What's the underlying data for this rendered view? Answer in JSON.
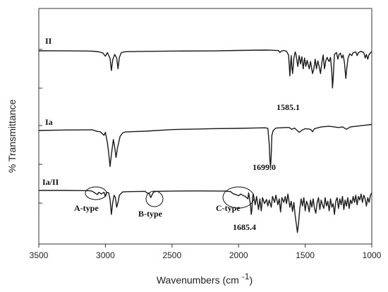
{
  "chart_data": {
    "type": "line",
    "title": "",
    "xlabel": "Wavenumbers (cm",
    "xlabel_sup": "-1",
    "xlabel_close": ")",
    "ylabel": "% Transmittance",
    "xlim": [
      3500,
      1000
    ],
    "x_reversed": true,
    "x_ticks": [
      3500,
      3000,
      2500,
      2000,
      1500,
      1000
    ],
    "grid": false,
    "series": [
      {
        "name": "II",
        "baseline": 0,
        "points": [
          [
            3500,
            0
          ],
          [
            3300,
            -0.1
          ],
          [
            3100,
            -0.6
          ],
          [
            3050,
            -1.8
          ],
          [
            3020,
            -3.4
          ],
          [
            3000,
            -9
          ],
          [
            2985,
            -3
          ],
          [
            2965,
            -13
          ],
          [
            2955,
            -33
          ],
          [
            2945,
            -15
          ],
          [
            2930,
            -6
          ],
          [
            2915,
            -12
          ],
          [
            2905,
            -30
          ],
          [
            2895,
            -11
          ],
          [
            2880,
            -3
          ],
          [
            2850,
            -1.5
          ],
          [
            2700,
            -0.9
          ],
          [
            2500,
            -0.5
          ],
          [
            2200,
            -0.2
          ],
          [
            2000,
            0.6
          ],
          [
            1800,
            1.2
          ],
          [
            1750,
            1.0
          ],
          [
            1700,
            0.4
          ],
          [
            1690,
            -3
          ],
          [
            1680,
            -0.6
          ],
          [
            1660,
            0.6
          ],
          [
            1640,
            -1
          ],
          [
            1625,
            -7
          ],
          [
            1620,
            -22
          ],
          [
            1615,
            -42
          ],
          [
            1610,
            -25
          ],
          [
            1605,
            -8
          ],
          [
            1600,
            -26
          ],
          [
            1595,
            -38
          ],
          [
            1590,
            -27
          ],
          [
            1585,
            -12
          ],
          [
            1575,
            -2
          ],
          [
            1570,
            -5
          ],
          [
            1555,
            -26
          ],
          [
            1545,
            -8
          ],
          [
            1535,
            -22
          ],
          [
            1525,
            -10
          ],
          [
            1515,
            -30
          ],
          [
            1505,
            -12
          ],
          [
            1495,
            -26
          ],
          [
            1485,
            -16
          ],
          [
            1470,
            -30
          ],
          [
            1460,
            -18
          ],
          [
            1445,
            -38
          ],
          [
            1435,
            -30
          ],
          [
            1425,
            -14
          ],
          [
            1415,
            -30
          ],
          [
            1405,
            -17
          ],
          [
            1395,
            -26
          ],
          [
            1385,
            -38
          ],
          [
            1375,
            -20
          ],
          [
            1365,
            -7
          ],
          [
            1355,
            -30
          ],
          [
            1345,
            -16
          ],
          [
            1335,
            -11
          ],
          [
            1330,
            -14
          ],
          [
            1320,
            -18
          ],
          [
            1310,
            -11
          ],
          [
            1300,
            -36
          ],
          [
            1295,
            -62
          ],
          [
            1290,
            -48
          ],
          [
            1285,
            -25
          ],
          [
            1280,
            -6
          ],
          [
            1265,
            -3
          ],
          [
            1255,
            -14
          ],
          [
            1245,
            -6
          ],
          [
            1235,
            -4
          ],
          [
            1225,
            -12
          ],
          [
            1215,
            -7
          ],
          [
            1205,
            -20
          ],
          [
            1195,
            -46
          ],
          [
            1188,
            -30
          ],
          [
            1178,
            -12
          ],
          [
            1165,
            -5
          ],
          [
            1150,
            -8
          ],
          [
            1140,
            -3
          ],
          [
            1120,
            -2
          ],
          [
            1110,
            -8
          ],
          [
            1100,
            -3
          ],
          [
            1080,
            -1
          ],
          [
            1060,
            -3
          ],
          [
            1050,
            -12
          ],
          [
            1040,
            -6
          ],
          [
            1030,
            -14
          ],
          [
            1020,
            -6
          ],
          [
            1000,
            -1
          ]
        ]
      },
      {
        "name": "Ia",
        "baseline": 0,
        "points": [
          [
            3500,
            0
          ],
          [
            3300,
            0.8
          ],
          [
            3100,
            1.2
          ],
          [
            3060,
            -1.5
          ],
          [
            3040,
            -2
          ],
          [
            3010,
            -8
          ],
          [
            3000,
            -3
          ],
          [
            2985,
            -20
          ],
          [
            2975,
            -38
          ],
          [
            2965,
            -60
          ],
          [
            2955,
            -40
          ],
          [
            2940,
            -15
          ],
          [
            2930,
            -28
          ],
          [
            2920,
            -45
          ],
          [
            2910,
            -30
          ],
          [
            2890,
            -10
          ],
          [
            2870,
            -4
          ],
          [
            2850,
            -2.5
          ],
          [
            2800,
            -2
          ],
          [
            2700,
            -1.2
          ],
          [
            2500,
            1.5
          ],
          [
            2300,
            2.5
          ],
          [
            2200,
            3
          ],
          [
            2000,
            3.5
          ],
          [
            1900,
            4
          ],
          [
            1800,
            4.5
          ],
          [
            1780,
            3.5
          ],
          [
            1770,
            -22
          ],
          [
            1765,
            -48
          ],
          [
            1760,
            -62
          ],
          [
            1755,
            -40
          ],
          [
            1750,
            -8
          ],
          [
            1740,
            0
          ],
          [
            1720,
            4
          ],
          [
            1650,
            5
          ],
          [
            1620,
            5
          ],
          [
            1600,
            2
          ],
          [
            1580,
            4
          ],
          [
            1560,
            0
          ],
          [
            1545,
            -3
          ],
          [
            1520,
            1
          ],
          [
            1500,
            3
          ],
          [
            1460,
            2
          ],
          [
            1445,
            -2
          ],
          [
            1430,
            3
          ],
          [
            1380,
            6
          ],
          [
            1320,
            7
          ],
          [
            1280,
            6
          ],
          [
            1250,
            5
          ],
          [
            1220,
            6
          ],
          [
            1190,
            2
          ],
          [
            1160,
            6
          ],
          [
            1120,
            7
          ],
          [
            1080,
            8
          ],
          [
            1040,
            9
          ],
          [
            1000,
            10
          ]
        ]
      },
      {
        "name": "Ia/II",
        "baseline": 0,
        "points": [
          [
            3500,
            0
          ],
          [
            3300,
            0
          ],
          [
            3200,
            -0.2
          ],
          [
            3120,
            -0.5
          ],
          [
            3100,
            -1
          ],
          [
            3060,
            -7
          ],
          [
            3050,
            -3
          ],
          [
            3030,
            -6
          ],
          [
            3010,
            -3
          ],
          [
            3000,
            -10
          ],
          [
            2990,
            -3
          ],
          [
            2975,
            -4
          ],
          [
            2965,
            -15
          ],
          [
            2955,
            -40
          ],
          [
            2945,
            -20
          ],
          [
            2935,
            -8
          ],
          [
            2925,
            -12
          ],
          [
            2915,
            -28
          ],
          [
            2905,
            -20
          ],
          [
            2895,
            -8
          ],
          [
            2870,
            -2.5
          ],
          [
            2820,
            -2
          ],
          [
            2700,
            -1.5
          ],
          [
            2690,
            -4
          ],
          [
            2670,
            -5
          ],
          [
            2660,
            -12
          ],
          [
            2640,
            -3
          ],
          [
            2620,
            -1.5
          ],
          [
            2500,
            -1
          ],
          [
            2300,
            -0.8
          ],
          [
            2100,
            -1
          ],
          [
            2060,
            -2
          ],
          [
            2040,
            -5.5
          ],
          [
            2020,
            -7
          ],
          [
            2000,
            -9
          ],
          [
            1985,
            -6
          ],
          [
            1970,
            -8
          ],
          [
            1950,
            -10
          ],
          [
            1930,
            -14
          ],
          [
            1925,
            -4
          ],
          [
            1920,
            -10
          ],
          [
            1910,
            -26
          ],
          [
            1905,
            -40
          ],
          [
            1900,
            -32
          ],
          [
            1895,
            -12
          ],
          [
            1890,
            -6
          ],
          [
            1875,
            -24
          ],
          [
            1865,
            -10
          ],
          [
            1850,
            -32
          ],
          [
            1840,
            -14
          ],
          [
            1830,
            -34
          ],
          [
            1820,
            -12
          ],
          [
            1805,
            -22
          ],
          [
            1790,
            -15
          ],
          [
            1780,
            -26
          ],
          [
            1770,
            -16
          ],
          [
            1755,
            -28
          ],
          [
            1745,
            -10
          ],
          [
            1730,
            -20
          ],
          [
            1720,
            -8
          ],
          [
            1705,
            -24
          ],
          [
            1695,
            -14
          ],
          [
            1685,
            -36
          ],
          [
            1675,
            -12
          ],
          [
            1660,
            -20
          ],
          [
            1650,
            -10
          ],
          [
            1640,
            -22
          ],
          [
            1630,
            -6
          ],
          [
            1615,
            -28
          ],
          [
            1605,
            -18
          ],
          [
            1595,
            -35
          ],
          [
            1585,
            -20
          ],
          [
            1575,
            -42
          ],
          [
            1565,
            -58
          ],
          [
            1558,
            -70
          ],
          [
            1550,
            -55
          ],
          [
            1540,
            -30
          ],
          [
            1530,
            -14
          ],
          [
            1520,
            -26
          ],
          [
            1510,
            -12
          ],
          [
            1500,
            -34
          ],
          [
            1490,
            -18
          ],
          [
            1480,
            -24
          ],
          [
            1470,
            -36
          ],
          [
            1460,
            -16
          ],
          [
            1450,
            -28
          ],
          [
            1440,
            -14
          ],
          [
            1430,
            -30
          ],
          [
            1420,
            -38
          ],
          [
            1410,
            -20
          ],
          [
            1400,
            -12
          ],
          [
            1390,
            -32
          ],
          [
            1380,
            -16
          ],
          [
            1370,
            -24
          ],
          [
            1360,
            -30
          ],
          [
            1350,
            -12
          ],
          [
            1340,
            -26
          ],
          [
            1330,
            -18
          ],
          [
            1320,
            -34
          ],
          [
            1310,
            -14
          ],
          [
            1300,
            -28
          ],
          [
            1290,
            -22
          ],
          [
            1280,
            -40
          ],
          [
            1270,
            -18
          ],
          [
            1260,
            -12
          ],
          [
            1250,
            -30
          ],
          [
            1240,
            -14
          ],
          [
            1230,
            -24
          ],
          [
            1220,
            -10
          ],
          [
            1210,
            -32
          ],
          [
            1200,
            -16
          ],
          [
            1190,
            -26
          ],
          [
            1180,
            -12
          ],
          [
            1170,
            -30
          ],
          [
            1160,
            -16
          ],
          [
            1150,
            -22
          ],
          [
            1140,
            -10
          ],
          [
            1130,
            -20
          ],
          [
            1120,
            -8
          ],
          [
            1110,
            -24
          ],
          [
            1100,
            -10
          ],
          [
            1090,
            -16
          ],
          [
            1080,
            -6
          ],
          [
            1070,
            -20
          ],
          [
            1060,
            -8
          ],
          [
            1050,
            -14
          ],
          [
            1040,
            -26
          ],
          [
            1030,
            -12
          ],
          [
            1020,
            -20
          ],
          [
            1010,
            -8
          ],
          [
            1000,
            -4
          ]
        ]
      }
    ],
    "annotations": [
      {
        "text": "1585.1",
        "wavenumber": 1585.1,
        "series": "II"
      },
      {
        "text": "1699.0",
        "wavenumber": 1699.0,
        "series": "Ia"
      },
      {
        "text": "1685.4",
        "wavenumber": 1685.4,
        "series": "Ia/II"
      },
      {
        "text": "A-type",
        "wavenumber": 3060,
        "series": "Ia/II",
        "circled": true
      },
      {
        "text": "B-type",
        "wavenumber": 2660,
        "series": "Ia/II",
        "circled": true
      },
      {
        "text": "C-type",
        "wavenumber": 2000,
        "series": "Ia/II",
        "circled": true
      }
    ],
    "colors": {
      "line": "#1a1a1a",
      "axis": "#333333"
    }
  }
}
